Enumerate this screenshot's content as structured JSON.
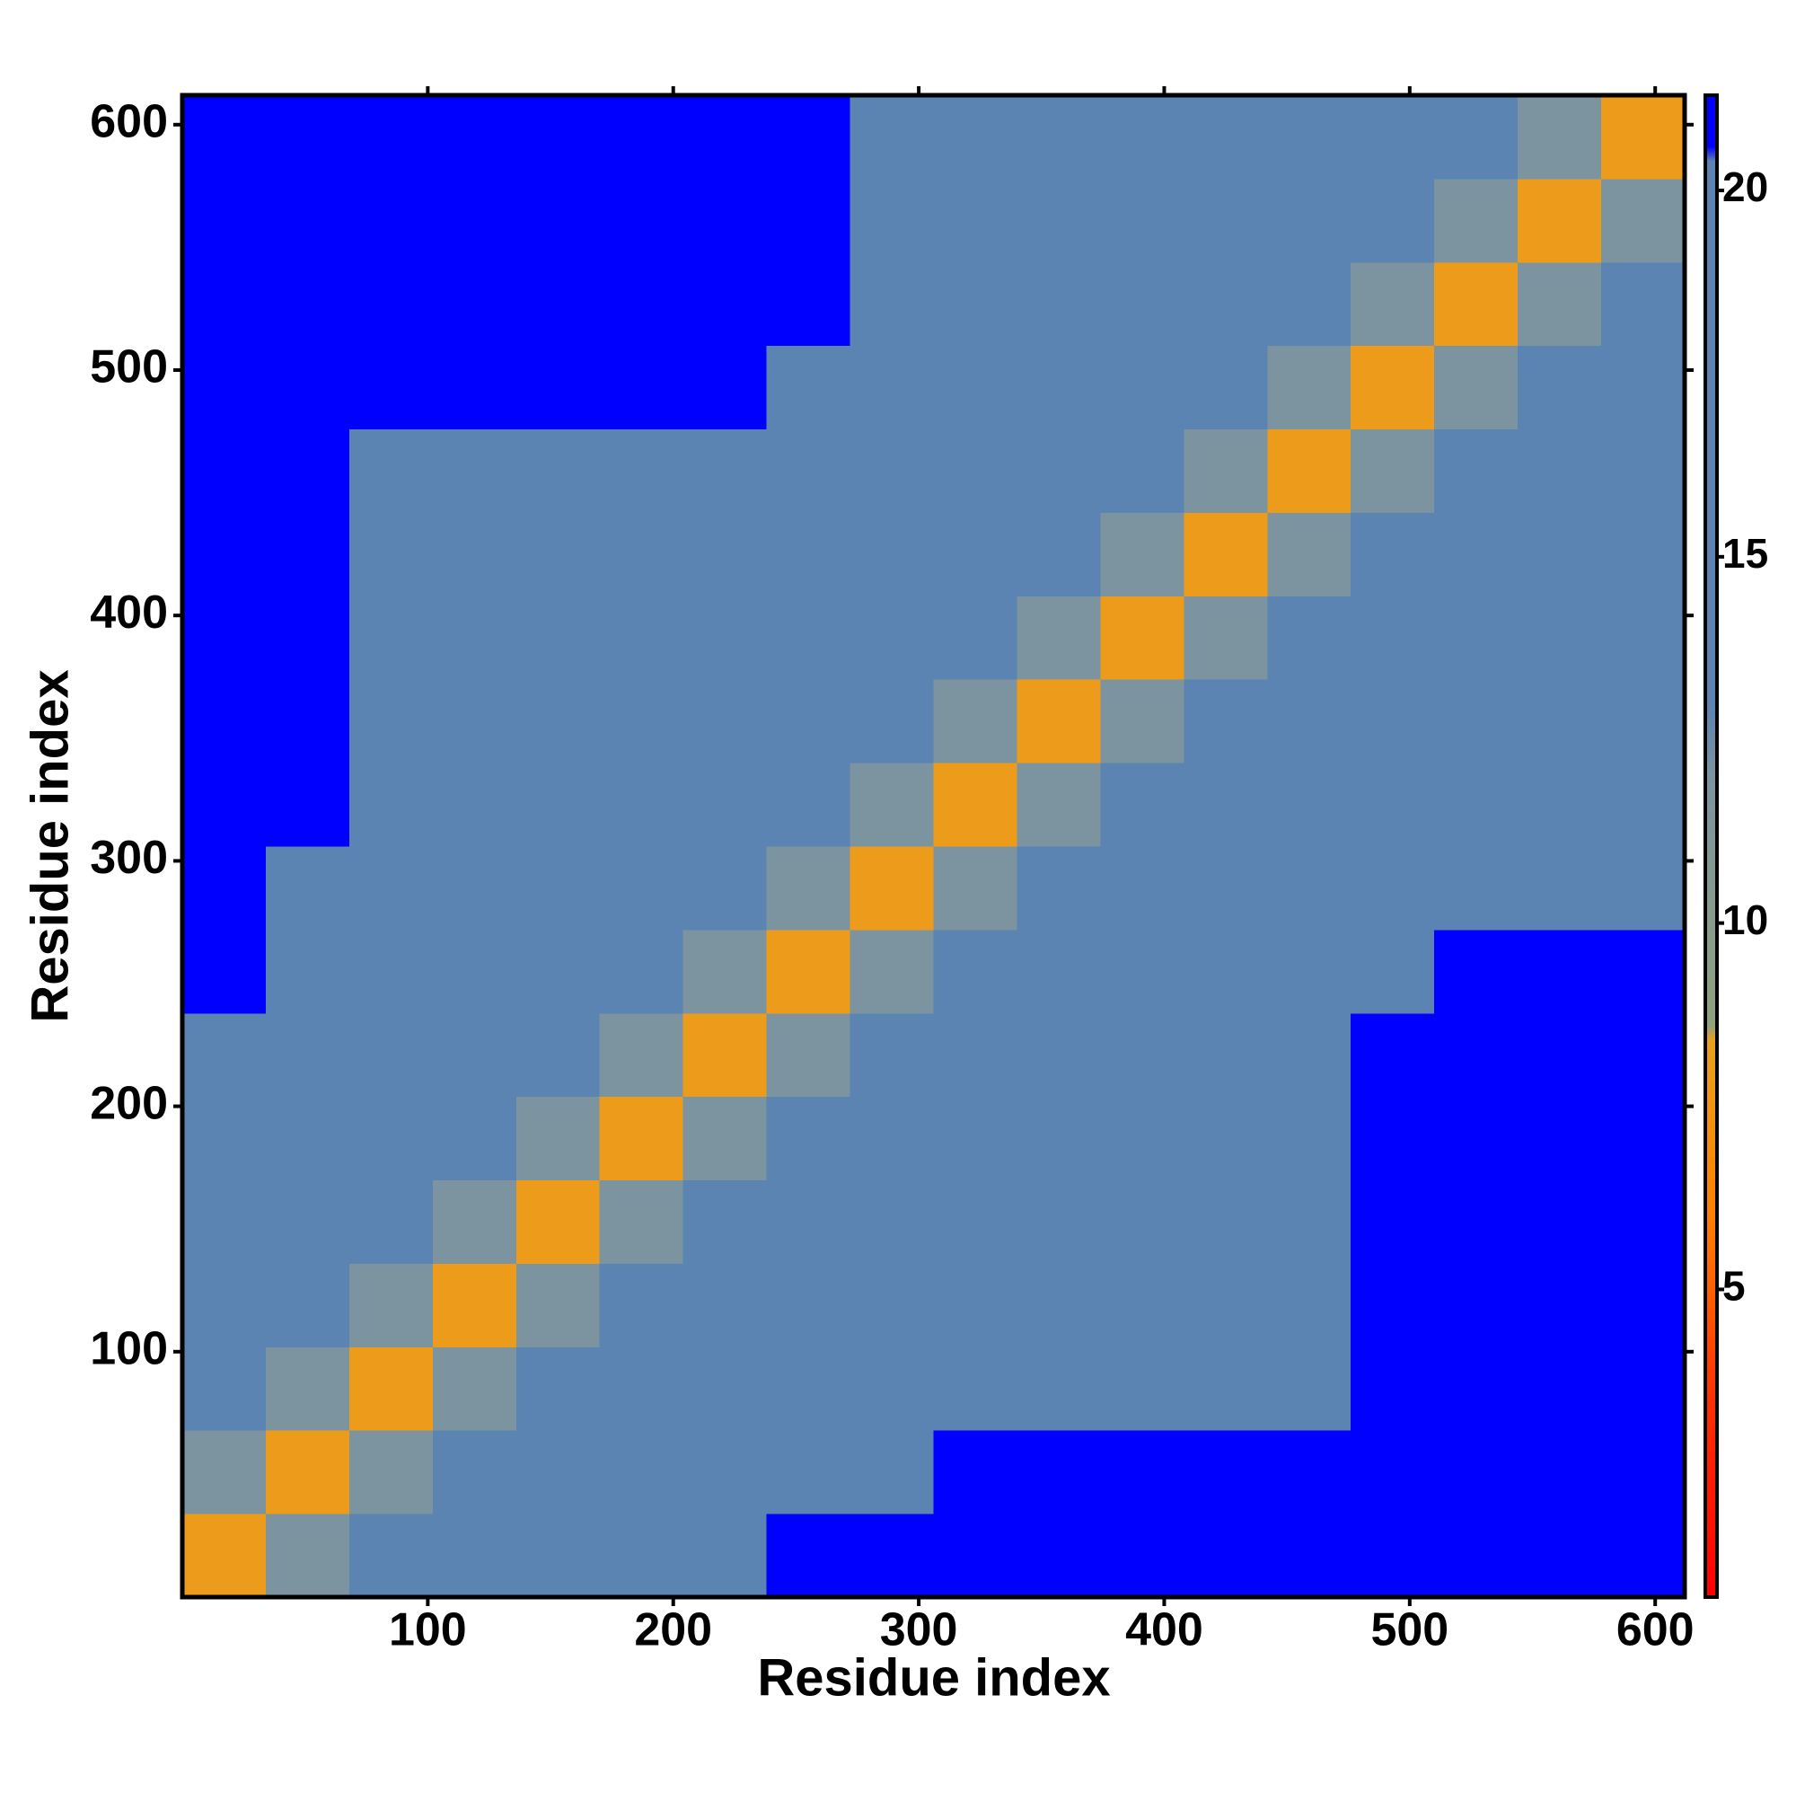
{
  "chart_data": {
    "type": "heatmap",
    "xlabel": "Residue index",
    "ylabel": "Residue index",
    "xlim": [
      0,
      612
    ],
    "ylim": [
      0,
      612
    ],
    "xticks": [
      100,
      200,
      300,
      400,
      500,
      600
    ],
    "yticks": [
      100,
      200,
      300,
      400,
      500,
      600
    ],
    "bins": [
      0,
      34,
      68,
      102,
      136,
      170,
      204,
      238,
      272,
      306,
      340,
      374,
      408,
      442,
      476,
      510,
      544,
      578,
      612
    ],
    "z": [
      [
        8,
        12,
        15,
        15,
        15,
        15,
        19,
        22,
        22,
        22,
        22,
        22,
        22,
        22,
        22,
        22,
        22,
        22
      ],
      [
        12,
        8,
        12,
        15,
        15,
        15,
        15,
        18,
        18,
        21,
        21,
        21,
        21,
        21,
        22,
        22,
        22,
        22
      ],
      [
        15,
        12,
        8,
        12,
        15,
        15,
        15,
        18,
        18,
        18,
        18,
        18,
        18,
        18,
        22,
        22,
        22,
        22
      ],
      [
        15,
        15,
        12,
        8,
        12,
        15,
        15,
        18,
        18,
        18,
        18,
        18,
        18,
        18,
        22,
        22,
        22,
        22
      ],
      [
        15,
        15,
        15,
        12,
        8,
        12,
        15,
        18,
        18,
        18,
        18,
        18,
        18,
        18,
        22,
        22,
        22,
        22
      ],
      [
        15,
        15,
        15,
        15,
        12,
        8,
        12,
        18,
        18,
        18,
        18,
        18,
        18,
        18,
        22,
        22,
        22,
        22
      ],
      [
        19,
        15,
        15,
        15,
        15,
        12,
        8,
        12,
        18,
        18,
        18,
        18,
        18,
        18,
        22,
        22,
        22,
        22
      ],
      [
        22,
        18,
        18,
        18,
        18,
        18,
        12,
        8,
        12,
        15,
        15,
        15,
        15,
        15,
        17,
        21,
        21,
        21
      ],
      [
        22,
        18,
        18,
        18,
        18,
        18,
        18,
        12,
        8,
        12,
        15,
        15,
        15,
        15,
        17,
        20,
        20,
        20
      ],
      [
        22,
        21,
        18,
        18,
        18,
        18,
        18,
        15,
        12,
        8,
        12,
        15,
        15,
        15,
        17,
        17,
        17,
        17
      ],
      [
        22,
        21,
        18,
        18,
        18,
        18,
        18,
        15,
        15,
        12,
        8,
        12,
        15,
        15,
        17,
        17,
        17,
        17
      ],
      [
        22,
        21,
        18,
        18,
        18,
        18,
        18,
        15,
        15,
        15,
        12,
        8,
        12,
        15,
        17,
        17,
        17,
        17
      ],
      [
        22,
        21,
        18,
        18,
        18,
        18,
        18,
        15,
        15,
        15,
        15,
        12,
        8,
        12,
        17,
        17,
        17,
        17
      ],
      [
        22,
        21,
        18,
        18,
        18,
        18,
        18,
        15,
        15,
        15,
        15,
        15,
        12,
        8,
        12,
        17,
        17,
        17
      ],
      [
        22,
        22,
        22,
        22,
        22,
        22,
        22,
        17,
        17,
        17,
        17,
        17,
        17,
        12,
        8,
        12,
        15,
        15
      ],
      [
        22,
        22,
        22,
        22,
        22,
        22,
        22,
        21,
        20,
        17,
        17,
        17,
        17,
        17,
        12,
        8,
        12,
        15
      ],
      [
        22,
        22,
        22,
        22,
        22,
        22,
        22,
        21,
        20,
        17,
        17,
        17,
        17,
        17,
        15,
        12,
        8,
        12
      ],
      [
        22,
        22,
        22,
        22,
        22,
        22,
        22,
        21,
        20,
        17,
        17,
        17,
        17,
        17,
        15,
        15,
        12,
        8
      ]
    ],
    "clim": [
      0.8,
      21.3
    ],
    "cticks": [
      5,
      10,
      15,
      20
    ],
    "colorscale": [
      {
        "value": 0.8,
        "color": "#ff0000"
      },
      {
        "value": 3.5,
        "color": "#ff3000"
      },
      {
        "value": 6,
        "color": "#ff8000"
      },
      {
        "value": 8.4,
        "color": "#e8a020"
      },
      {
        "value": 8.6,
        "color": "#8fa37d"
      },
      {
        "value": 12,
        "color": "#7b94a0"
      },
      {
        "value": 13,
        "color": "#5b84b2"
      },
      {
        "value": 20.4,
        "color": "#5b84b2"
      },
      {
        "value": 20.6,
        "color": "#0000ff"
      },
      {
        "value": 21.3,
        "color": "#0000ff"
      }
    ]
  }
}
